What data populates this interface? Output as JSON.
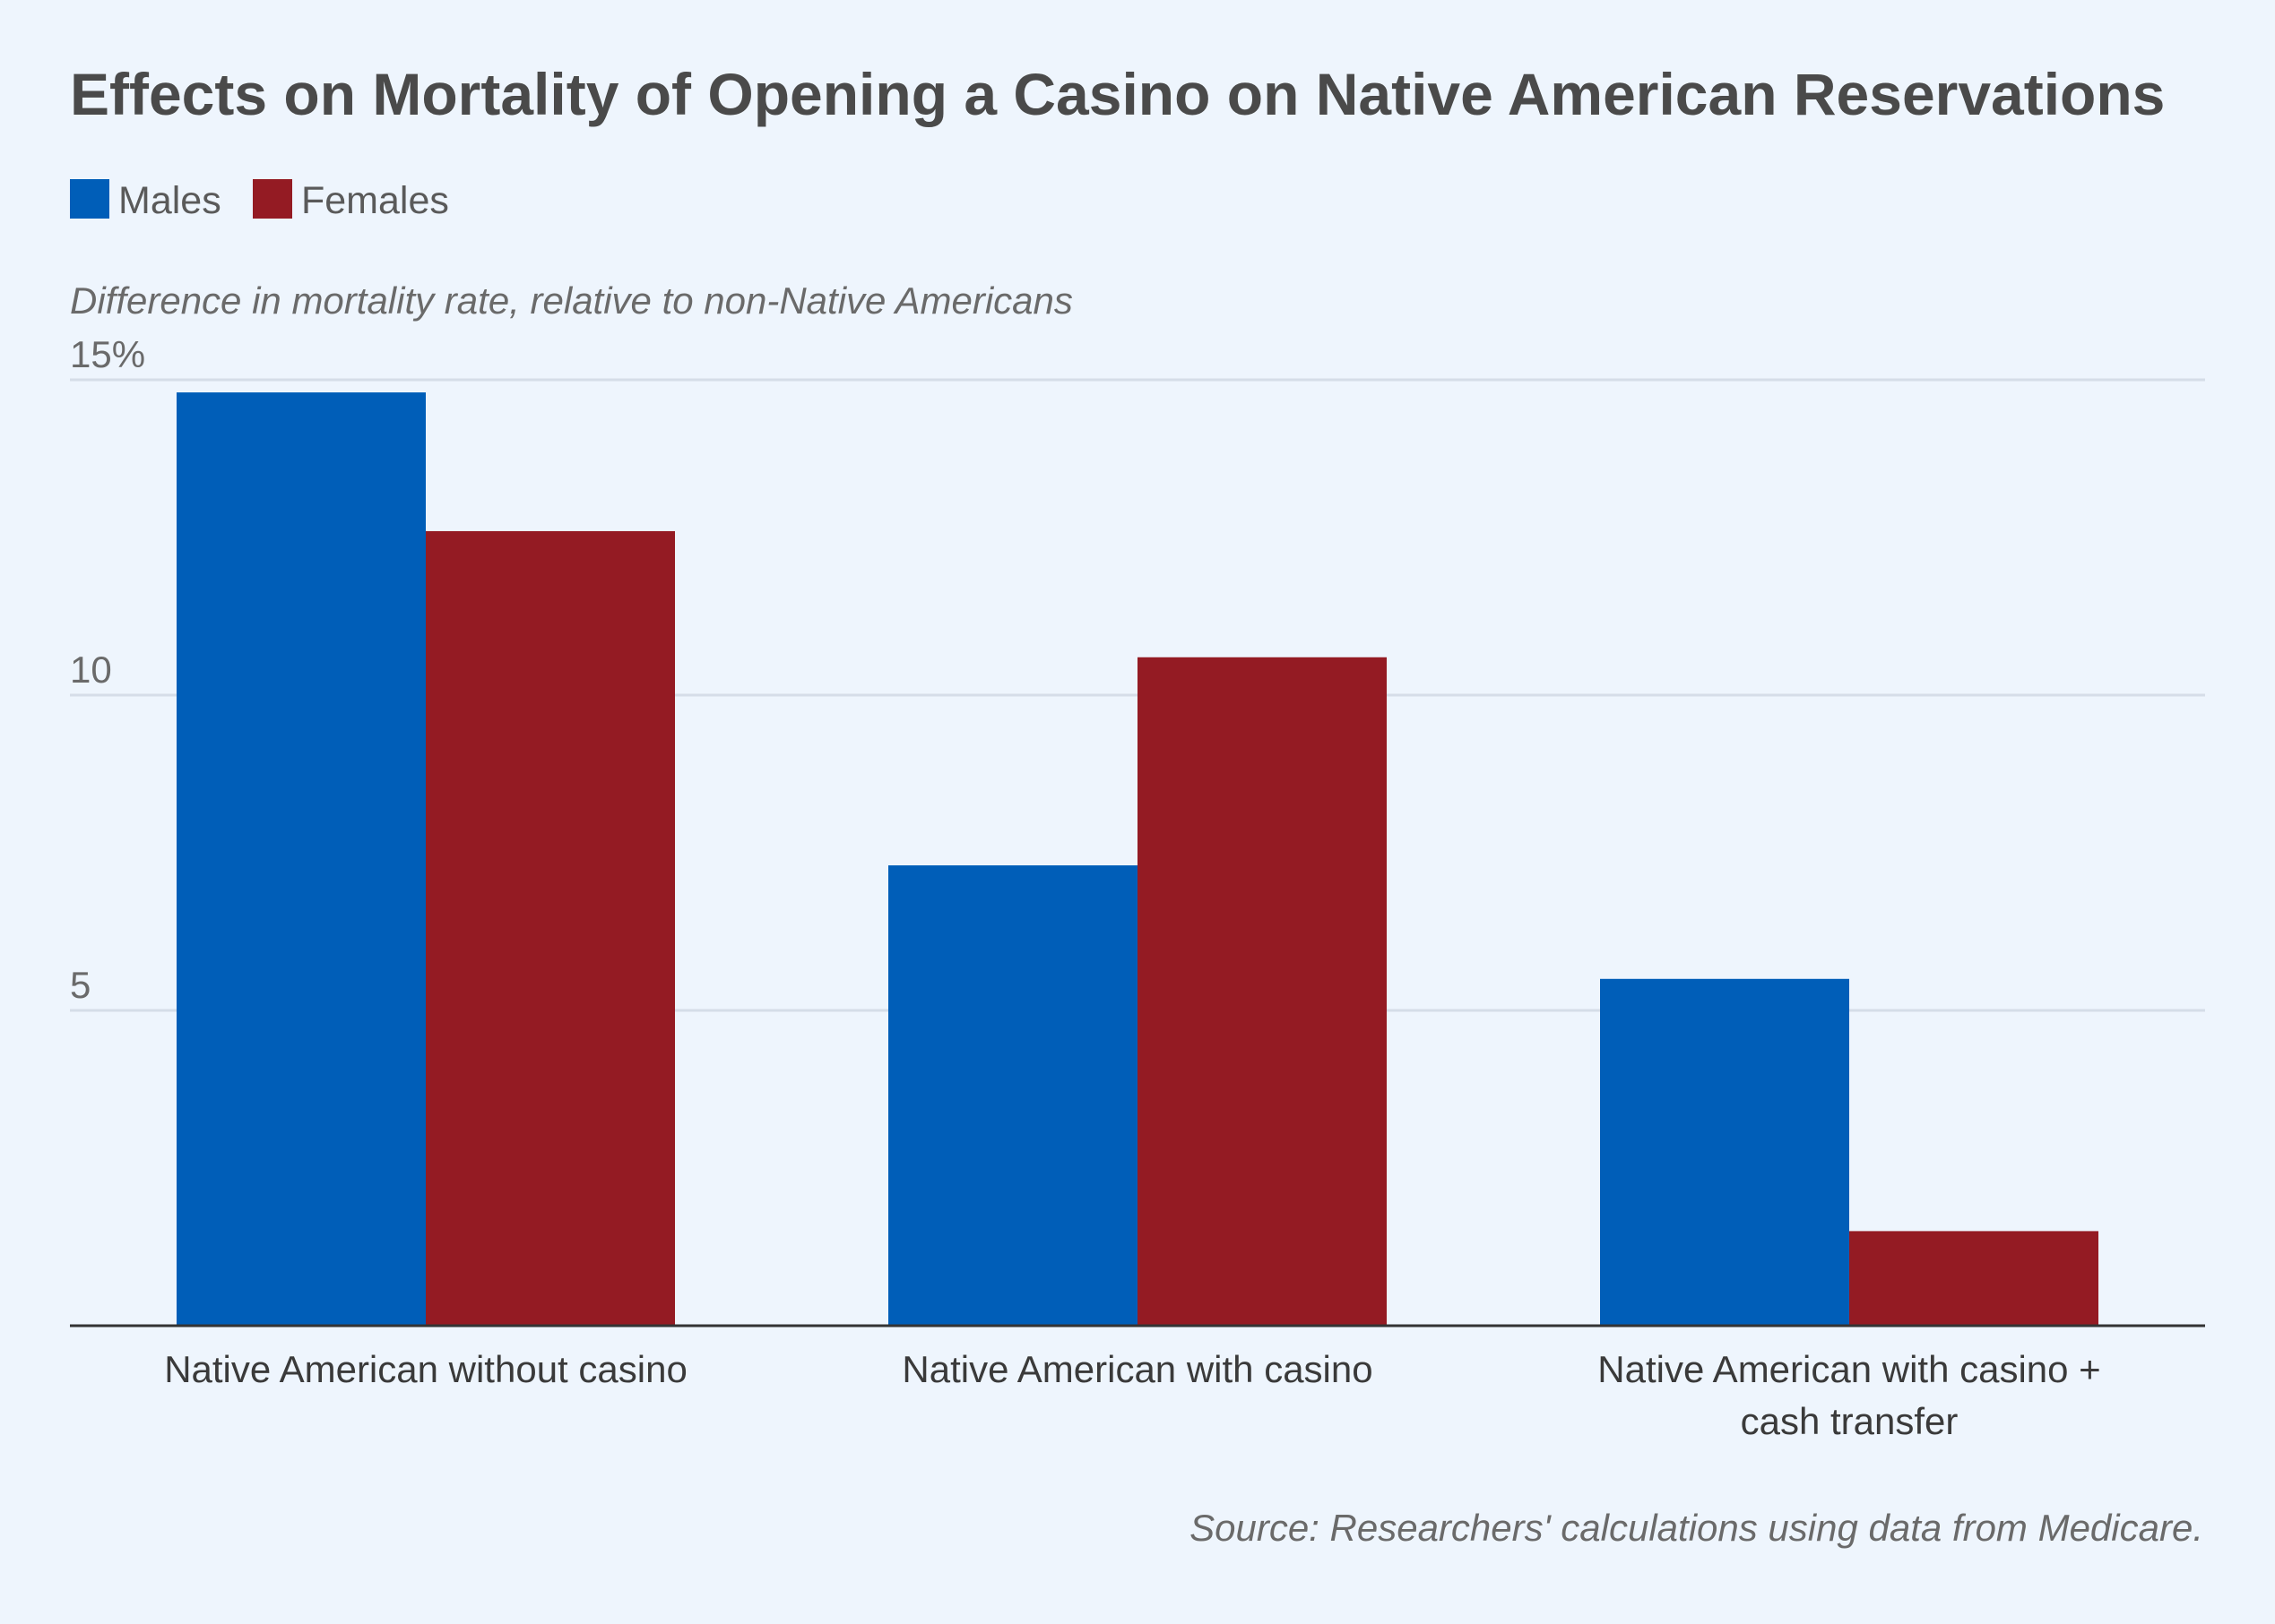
{
  "chart_data": {
    "type": "bar",
    "title": "Effects on Mortality of Opening a Casino on Native American Reservations",
    "ylabel": "Difference in mortality rate, relative to non-Native Americans",
    "xlabel": "",
    "categories": [
      [
        "Native American without casino"
      ],
      [
        "Native American with casino"
      ],
      [
        "Native American with casino +",
        "cash transfer"
      ]
    ],
    "series": [
      {
        "name": "Males",
        "color": "#005eb8",
        "values": [
          14.8,
          7.3,
          5.5
        ]
      },
      {
        "name": "Females",
        "color": "#941b23",
        "values": [
          12.6,
          10.6,
          1.5
        ]
      }
    ],
    "ylim": [
      0,
      15
    ],
    "yticks": [
      {
        "value": 5,
        "label": "5"
      },
      {
        "value": 10,
        "label": "10"
      },
      {
        "value": 15,
        "label": "15%"
      }
    ],
    "grid": true,
    "legend_position": "top-left",
    "source": "Source: Researchers' calculations using data from Medicare."
  },
  "colors": {
    "background": "#eef5fd",
    "gridline": "#d5dde8",
    "axis": "#333333"
  }
}
